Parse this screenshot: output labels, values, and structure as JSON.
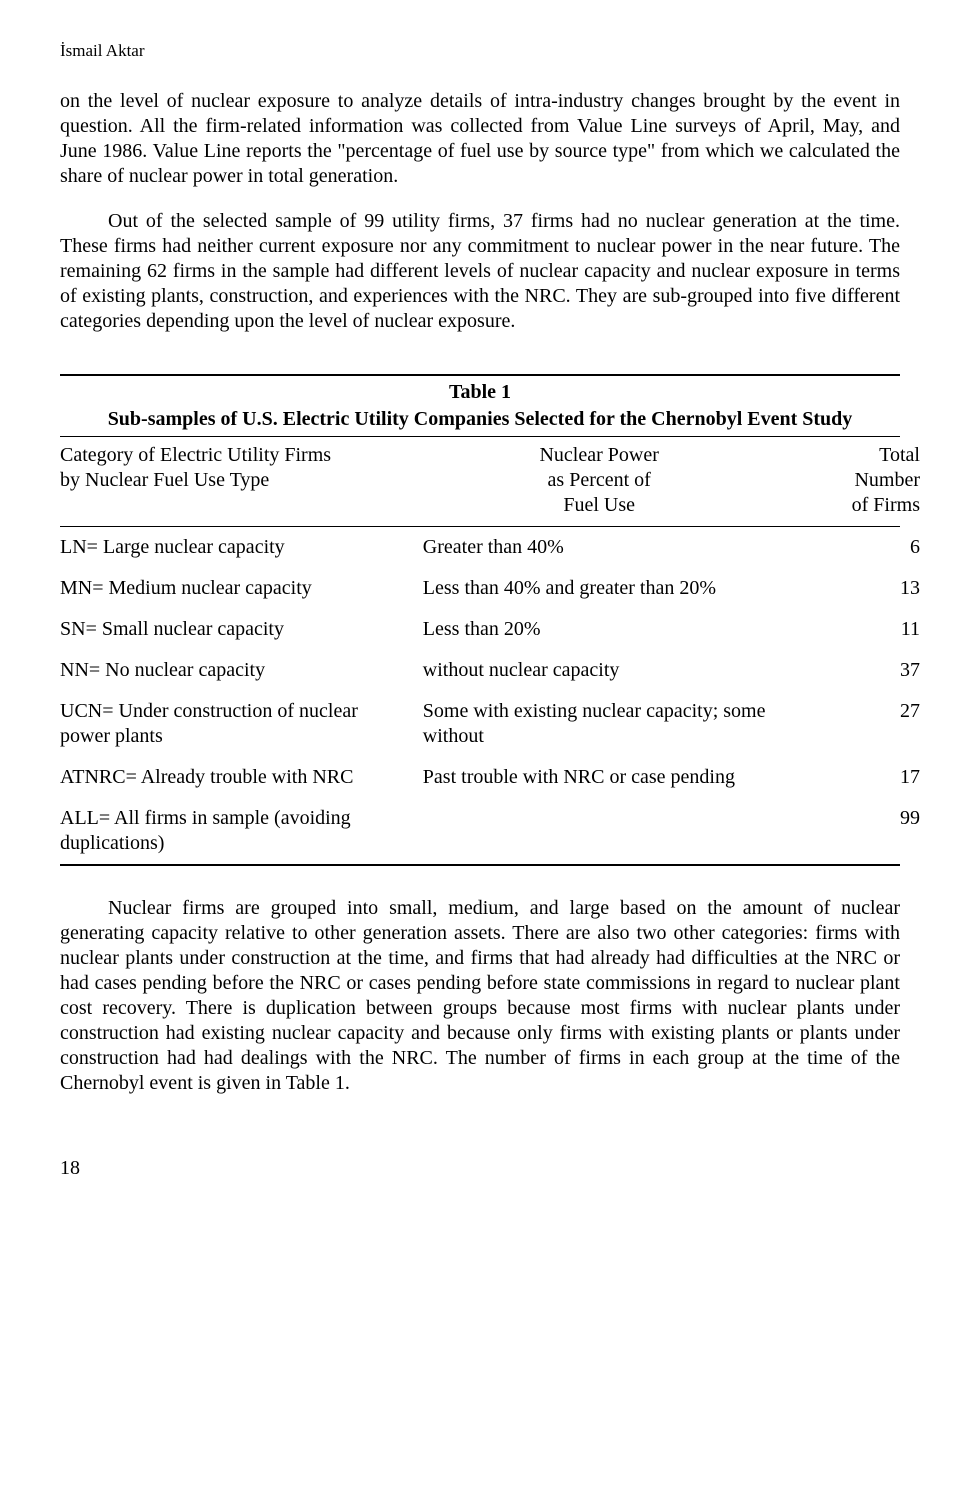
{
  "header": {
    "author": "İsmail Aktar"
  },
  "paragraphs": {
    "p1": "on the level of nuclear exposure to analyze details of intra-industry changes brought by the event in question. All the firm-related information was collected from Value Line surveys of April, May, and June 1986. Value Line reports the \"percentage of fuel use by source type\" from which we calculated the share of nuclear power in total generation.",
    "p2": "Out of the selected sample of 99 utility firms, 37 firms had no nuclear generation at the time. These firms had neither current exposure nor any commitment to nuclear power in the near future. The remaining 62 firms in the sample had different levels of nuclear capacity and nuclear exposure in terms of existing plants, construction, and experiences with the NRC. They are sub-grouped into five different categories depending upon the level of nuclear exposure.",
    "p3": "Nuclear firms are grouped into small, medium, and large based on the amount of nuclear generating capacity relative to other generation assets. There are also two other categories: firms with nuclear plants under construction at the time, and firms that had already had difficulties at the NRC or had cases pending before the NRC or cases pending before state commissions in regard to nuclear plant cost recovery. There is duplication between groups because most firms with nuclear plants under construction had existing nuclear capacity and because only firms with existing plants or plants under construction had had dealings with the NRC. The number of firms in each group at the time of the Chernobyl event is given in Table 1."
  },
  "table": {
    "title": "Table 1",
    "subtitle": "Sub-samples of U.S. Electric Utility Companies Selected for the Chernobyl Event Study",
    "columns": {
      "col1_line1": "Category of Electric Utility Firms",
      "col1_line2": "by Nuclear Fuel Use Type",
      "col2_line1": "Nuclear Power",
      "col2_line2": "as Percent of",
      "col2_line3": "Fuel Use",
      "col3_line1": "Total",
      "col3_line2": "Number",
      "col3_line3": "of Firms"
    },
    "rows": [
      {
        "category": "LN= Large nuclear capacity",
        "description": "Greater than 40%",
        "count": "6"
      },
      {
        "category": "MN= Medium nuclear capacity",
        "description": "Less than 40% and greater than 20%",
        "count": "13"
      },
      {
        "category": "SN= Small nuclear capacity",
        "description": "Less than 20%",
        "count": "11"
      },
      {
        "category": "NN= No nuclear capacity",
        "description": "without nuclear capacity",
        "count": "37"
      },
      {
        "category": "UCN= Under construction of nuclear power plants",
        "description": "Some with existing nuclear capacity; some without",
        "count": "27"
      },
      {
        "category": "ATNRC= Already trouble with NRC",
        "description": "Past trouble with NRC or case pending",
        "count": "17"
      },
      {
        "category": "ALL= All firms in sample (avoiding duplications)",
        "description": "",
        "count": "99"
      }
    ]
  },
  "page_number": "18"
}
